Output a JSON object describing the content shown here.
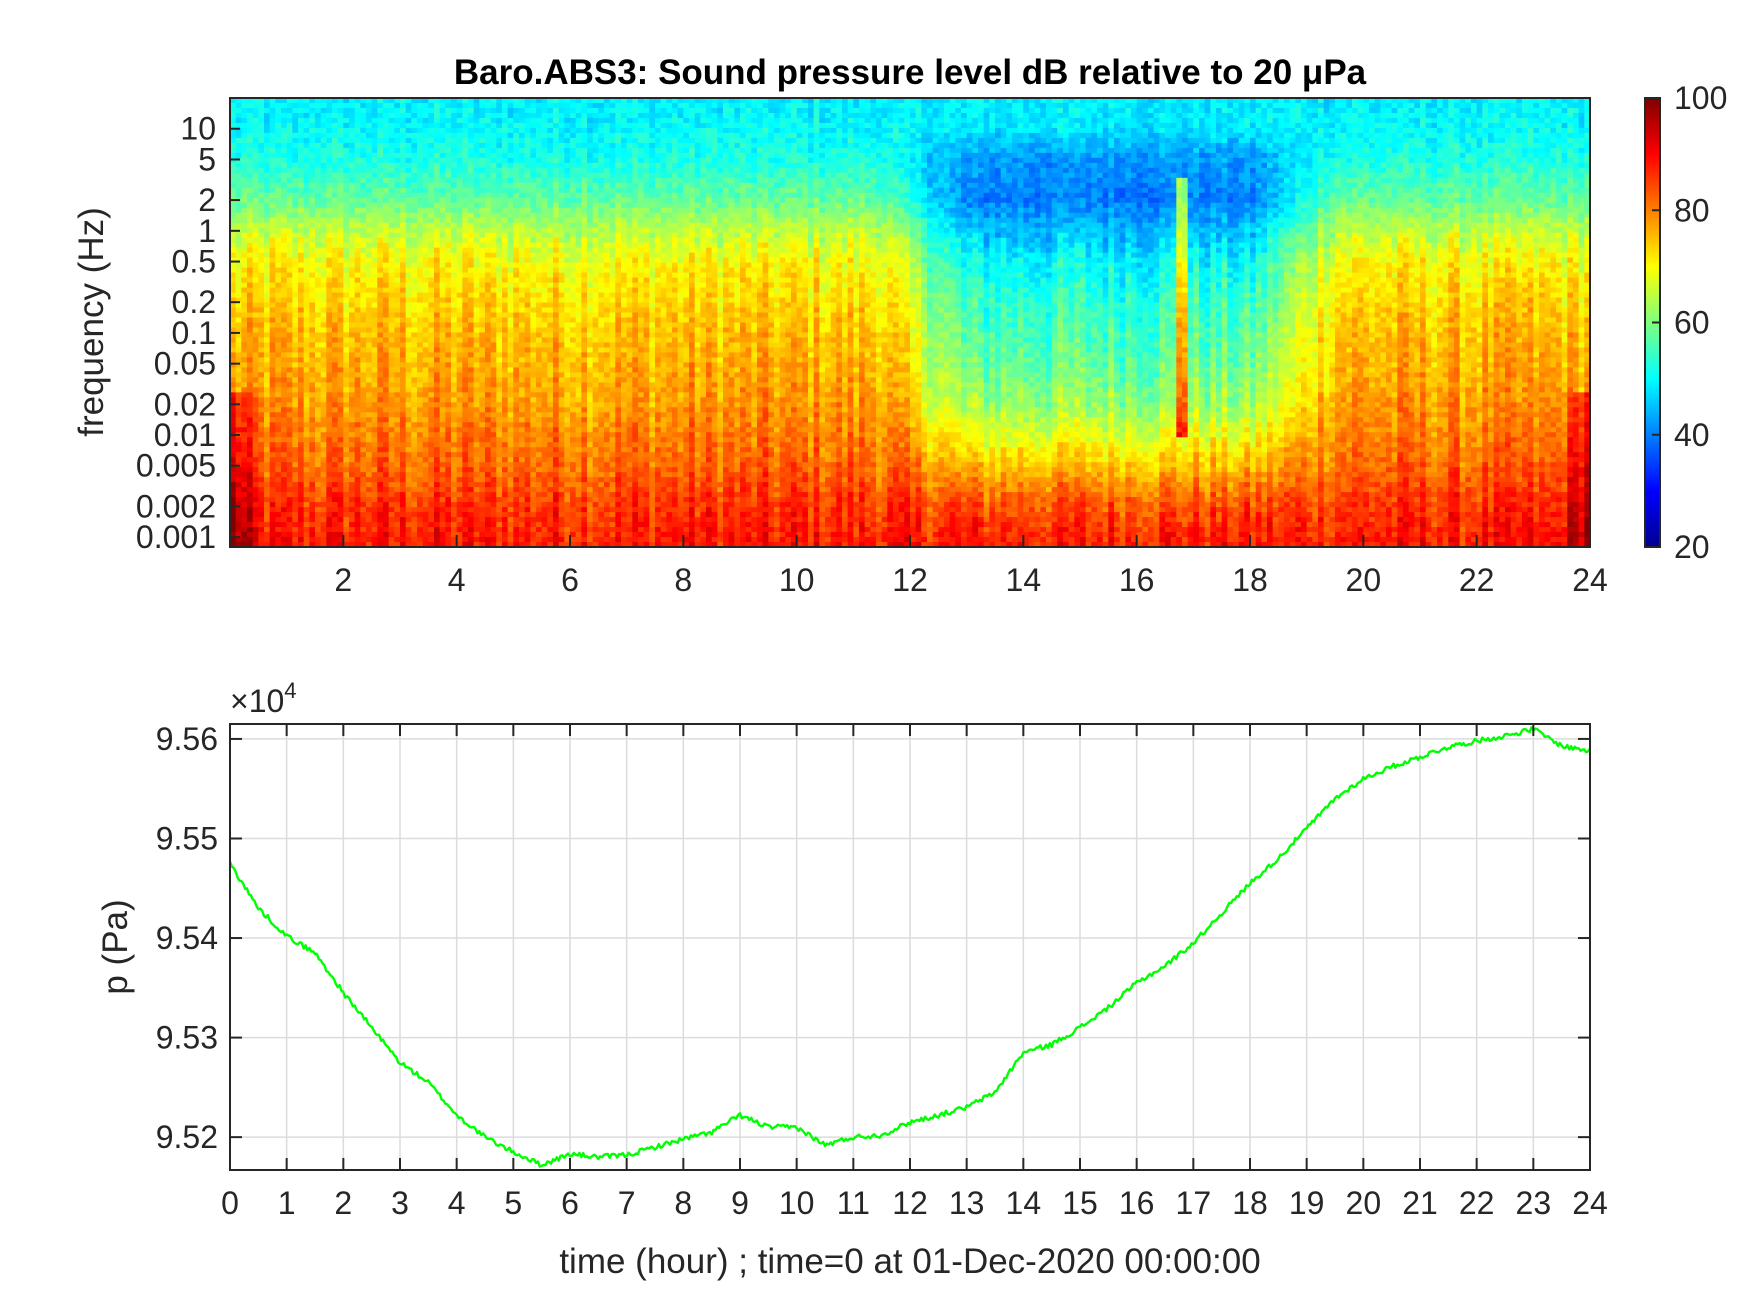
{
  "chart_data": [
    {
      "type": "heatmap",
      "title": "Baro.ABS3: Sound pressure level dB relative to 20 μPa",
      "xlabel": "",
      "ylabel": "frequency (Hz)",
      "x_ticks": [
        "2",
        "4",
        "6",
        "8",
        "10",
        "12",
        "14",
        "16",
        "18",
        "20",
        "22",
        "24"
      ],
      "y_ticks": [
        "10",
        "5",
        "2",
        "1",
        "0.5",
        "0.2",
        "0.1",
        "0.05",
        "0.02",
        "0.01",
        "0.005",
        "0.002",
        "0.001"
      ],
      "y_tick_values": [
        10,
        5,
        2,
        1,
        0.5,
        0.2,
        0.1,
        0.05,
        0.02,
        0.01,
        0.005,
        0.002,
        0.001
      ],
      "xlim": [
        0,
        24
      ],
      "ylim": [
        0.0008,
        20
      ],
      "y_scale": "log",
      "colorbar": {
        "ticks": [
          "100",
          "80",
          "60",
          "40",
          "20"
        ],
        "tick_values": [
          100,
          80,
          60,
          40,
          20
        ],
        "clim": [
          20,
          100
        ],
        "colormap": "jet"
      },
      "quiet_band_hours": [
        11.5,
        19.5
      ],
      "transient_event_hour": 16.8,
      "level_profile_db": {
        "note_freqs_hz": [
          0.001,
          0.002,
          0.005,
          0.01,
          0.02,
          0.05,
          0.1,
          0.2,
          0.5,
          1,
          2,
          5,
          10,
          20
        ],
        "active_hours_db": [
          88,
          86,
          82,
          80,
          78,
          76,
          75,
          73,
          70,
          65,
          58,
          52,
          50,
          49
        ],
        "quiet_hours_db": [
          88,
          84,
          75,
          68,
          62,
          58,
          56,
          54,
          50,
          45,
          40,
          42,
          48,
          49
        ]
      }
    },
    {
      "type": "line",
      "title": "",
      "xlabel": "time (hour) ; time=0 at 01-Dec-2020 00:00:00",
      "ylabel": "p (Pa)",
      "y_multiplier": {
        "base": "×10",
        "exponent": "4"
      },
      "x_ticks": [
        "0",
        "1",
        "2",
        "3",
        "4",
        "5",
        "6",
        "7",
        "8",
        "9",
        "10",
        "11",
        "12",
        "13",
        "14",
        "15",
        "16",
        "17",
        "18",
        "19",
        "20",
        "21",
        "22",
        "23",
        "24"
      ],
      "y_ticks": [
        "9.52",
        "9.53",
        "9.54",
        "9.55",
        "9.56"
      ],
      "y_tick_values": [
        9.52,
        9.53,
        9.54,
        9.55,
        9.56
      ],
      "xlim": [
        0,
        24
      ],
      "ylim": [
        9.5167,
        9.5615
      ],
      "grid": true,
      "series": [
        {
          "color": "#00ff00",
          "x": [
            0,
            0.5,
            1,
            1.5,
            2,
            2.5,
            3,
            3.5,
            4,
            4.5,
            5,
            5.5,
            6,
            6.5,
            7,
            7.5,
            8,
            8.5,
            9,
            9.5,
            10,
            10.5,
            11,
            11.5,
            12,
            12.5,
            13,
            13.5,
            14,
            14.5,
            15,
            15.5,
            16,
            16.5,
            17,
            17.5,
            18,
            18.5,
            19,
            19.5,
            20,
            20.5,
            21,
            21.5,
            22,
            22.5,
            23,
            23.5,
            24
          ],
          "y": [
            9.5475,
            9.543,
            9.5402,
            9.5385,
            9.5345,
            9.531,
            9.5275,
            9.5255,
            9.5222,
            9.52,
            9.5185,
            9.5172,
            9.5183,
            9.518,
            9.5182,
            9.519,
            9.5198,
            9.5205,
            9.5222,
            9.521,
            9.521,
            9.5192,
            9.52,
            9.5202,
            9.5215,
            9.5222,
            9.523,
            9.5245,
            9.5285,
            9.5293,
            9.531,
            9.533,
            9.5355,
            9.5372,
            9.5395,
            9.5425,
            9.5455,
            9.548,
            9.551,
            9.554,
            9.556,
            9.5572,
            9.5582,
            9.5592,
            9.5598,
            9.5603,
            9.561,
            9.5593,
            9.5588
          ]
        }
      ]
    }
  ]
}
